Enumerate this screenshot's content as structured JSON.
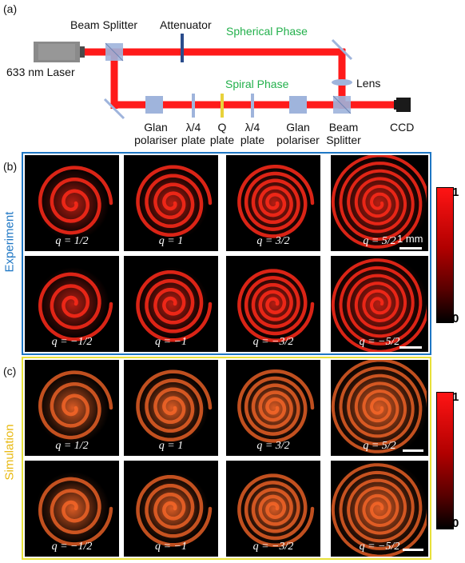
{
  "setup": {
    "panel_label": "(a)",
    "beam_splitter_top": "Beam Splitter",
    "attenuator": "Attenuator",
    "spherical_phase": "Spherical Phase",
    "laser": "633 nm Laser",
    "spiral_phase": "Spiral Phase",
    "lens": "Lens",
    "ccd": "CCD",
    "glan1": [
      "Glan",
      "polariser"
    ],
    "qw1": [
      "λ/4",
      "plate"
    ],
    "qplate": [
      "Q",
      "plate"
    ],
    "qw2": [
      "λ/4",
      "plate"
    ],
    "glan2": [
      "Glan",
      "polariser"
    ],
    "beam_splitter_bottom": [
      "Beam",
      "Splitter"
    ]
  },
  "experiment": {
    "panel_label": "(b)",
    "side_label": "Experiment",
    "border_color": "#1f77c4",
    "scale_text": "1 mm",
    "row1": [
      "q = 1/2",
      "q = 1",
      "q = 3/2",
      "q = 5/2"
    ],
    "row2": [
      "q = −1/2",
      "q = −1",
      "q = −3/2",
      "q = −5/2"
    ],
    "colorbar_max": "1",
    "colorbar_min": "0"
  },
  "simulation": {
    "panel_label": "(c)",
    "side_label": "Simulation",
    "border_color": "#e8e13a",
    "row1": [
      "q = 1/2",
      "q = 1",
      "q = 3/2",
      "q = 5/2"
    ],
    "row2": [
      "q = −1/2",
      "q = −1",
      "q = −3/2",
      "q = −5/2"
    ],
    "colorbar_max": "1",
    "colorbar_min": "0"
  },
  "colors": {
    "beam": "#ff1a1a",
    "optic": "#9fb4dc",
    "experiment_pattern": "#ff2a1a",
    "simulation_pattern": "#ff6a2a"
  }
}
